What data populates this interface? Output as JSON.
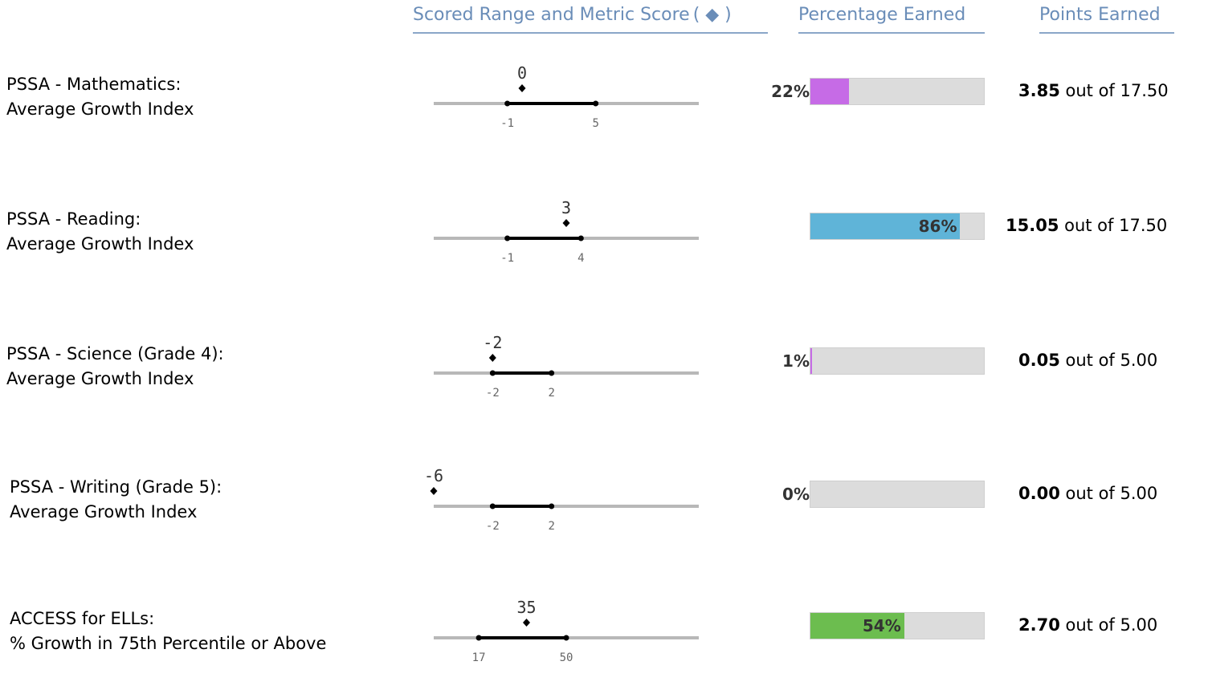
{
  "headers": {
    "range": "Scored Range and Metric Score",
    "range_marker": "( ◆ )",
    "percentage": "Percentage Earned",
    "points": "Points Earned"
  },
  "colors": {
    "header_text": "#6a8db8",
    "purple": "#c66be6",
    "blue": "#5fb4d8",
    "green": "#6cbd4f",
    "track": "#dcdcdc"
  },
  "chart_data": [
    {
      "type": "bar",
      "line1": "PSSA - Mathematics:",
      "line2": "Average Growth Index",
      "score": 0,
      "score_label": "0",
      "range_min": -1,
      "range_max": 5,
      "min_label": "-1",
      "max_label": "5",
      "axis": [
        -6,
        12
      ],
      "percent": 22,
      "percent_label": "22%",
      "percent_inside": false,
      "fill_color": "#c66be6",
      "points_earned": "3.85",
      "points_mid": " out of ",
      "points_total": "17.50"
    },
    {
      "type": "bar",
      "line1": "PSSA - Reading:",
      "line2": "Average Growth Index",
      "score": 3,
      "score_label": "3",
      "range_min": -1,
      "range_max": 4,
      "min_label": "-1",
      "max_label": "4",
      "axis": [
        -6,
        12
      ],
      "percent": 86,
      "percent_label": "86%",
      "percent_inside": true,
      "fill_color": "#5fb4d8",
      "points_earned": "15.05",
      "points_mid": " out of ",
      "points_total": "17.50"
    },
    {
      "type": "bar",
      "line1": "PSSA - Science (Grade 4):",
      "line2": "Average Growth Index",
      "score": -2,
      "score_label": "-2",
      "range_min": -2,
      "range_max": 2,
      "min_label": "-2",
      "max_label": "2",
      "axis": [
        -6,
        12
      ],
      "percent": 1,
      "percent_label": "1%",
      "percent_inside": false,
      "fill_color": "#c66be6",
      "points_earned": "0.05",
      "points_mid": " out of ",
      "points_total": "5.00"
    },
    {
      "type": "bar",
      "line1": "PSSA - Writing (Grade 5):",
      "line2": "Average Growth Index",
      "score": -6,
      "score_label": "-6",
      "range_min": -2,
      "range_max": 2,
      "min_label": "-2",
      "max_label": "2",
      "axis": [
        -6,
        12
      ],
      "percent": 0,
      "percent_label": "0%",
      "percent_inside": false,
      "fill_color": "#c66be6",
      "points_earned": "0.00",
      "points_mid": " out of ",
      "points_total": "5.00"
    },
    {
      "type": "bar",
      "line1": "ACCESS for ELLs:",
      "line2": "% Growth in 75th Percentile or Above",
      "score": 35,
      "score_label": "35",
      "range_min": 17,
      "range_max": 50,
      "min_label": "17",
      "max_label": "50",
      "axis": [
        0,
        100
      ],
      "percent": 54,
      "percent_label": "54%",
      "percent_inside": true,
      "fill_color": "#6cbd4f",
      "points_earned": "2.70",
      "points_mid": " out of ",
      "points_total": "5.00"
    }
  ]
}
